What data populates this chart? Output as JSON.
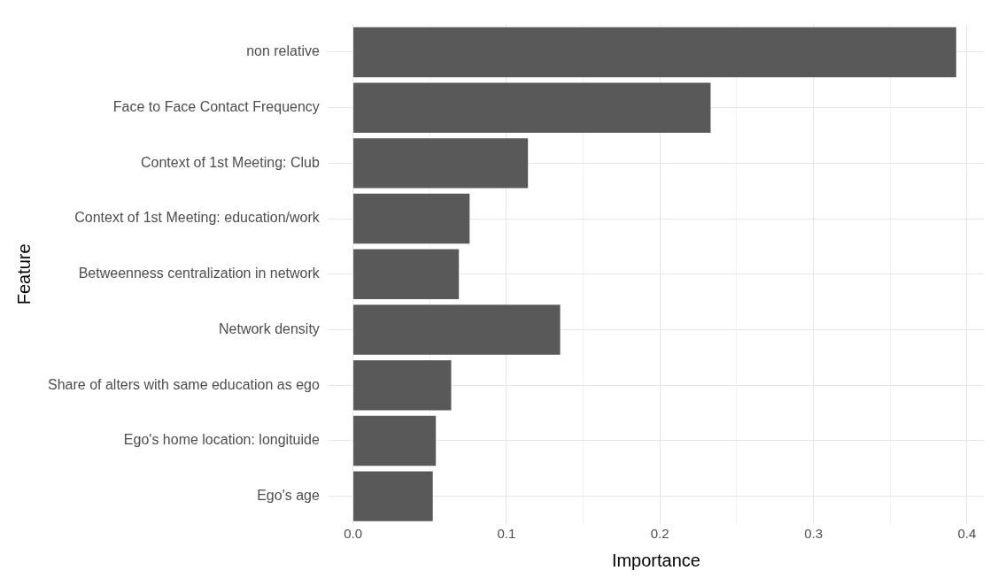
{
  "chart_data": {
    "type": "bar",
    "orientation": "horizontal",
    "xlabel": "Importance",
    "ylabel": "Feature",
    "categories": [
      "non relative",
      "Face to Face Contact Frequency",
      "Context of 1st Meeting: Club",
      "Context of 1st Meeting: education/work",
      "Betweenness centralization in network",
      "Network density",
      "Share of alters with same education as ego",
      "Ego's home location: longituide",
      "Ego's age"
    ],
    "values": [
      0.393,
      0.233,
      0.114,
      0.076,
      0.069,
      0.135,
      0.064,
      0.054,
      0.052
    ],
    "color": "#595959",
    "xlim": [
      -0.016,
      0.411
    ],
    "xticks": [
      {
        "value": 0,
        "label": "0.0"
      },
      {
        "value": 0.05,
        "label": null
      },
      {
        "value": 0.1,
        "label": "0.1"
      },
      {
        "value": 0.15,
        "label": null
      },
      {
        "value": 0.2,
        "label": "0.2"
      },
      {
        "value": 0.25,
        "label": null
      },
      {
        "value": 0.3,
        "label": "0.3"
      },
      {
        "value": 0.35,
        "label": null
      },
      {
        "value": 0.4,
        "label": "0.4"
      }
    ],
    "grid": true,
    "legend": false
  }
}
